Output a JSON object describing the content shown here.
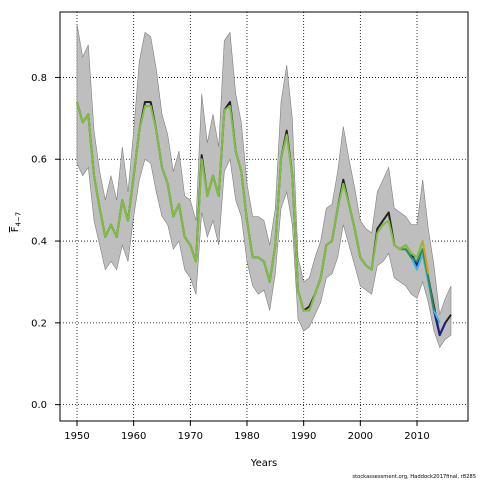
{
  "chart_data": {
    "type": "line",
    "xlabel": "Years",
    "ylabel": "F",
    "ylabel_sub": "4−7",
    "footnote": "stockassessment.org, Haddock2017final, r8285",
    "xlim": [
      1947,
      2019
    ],
    "ylim": [
      -0.04,
      0.96
    ],
    "xticks": [
      1950,
      1960,
      1970,
      1980,
      1990,
      2000,
      2010
    ],
    "yticks": [
      0.0,
      0.2,
      0.4,
      0.6,
      0.8
    ],
    "grid": true,
    "grid_style": "dotted",
    "colors": {
      "band": "#bebebe",
      "band_edge": "#7f7f7f",
      "base": "#222222",
      "retro1": "#1b1f8a",
      "retro2": "#3cb4e6",
      "retro3": "#2e8b57",
      "retro4": "#d4a017",
      "retro5": "#7fbf3f"
    },
    "confidence_band": {
      "years": [
        1950,
        1951,
        1952,
        1953,
        1954,
        1955,
        1956,
        1957,
        1958,
        1959,
        1960,
        1961,
        1962,
        1963,
        1964,
        1965,
        1966,
        1967,
        1968,
        1969,
        1970,
        1971,
        1972,
        1973,
        1974,
        1975,
        1976,
        1977,
        1978,
        1979,
        1980,
        1981,
        1982,
        1983,
        1984,
        1985,
        1986,
        1987,
        1988,
        1989,
        1990,
        1991,
        1992,
        1993,
        1994,
        1995,
        1996,
        1997,
        1998,
        1999,
        2000,
        2001,
        2002,
        2003,
        2004,
        2005,
        2006,
        2007,
        2008,
        2009,
        2010,
        2011,
        2012,
        2013,
        2014,
        2015,
        2016
      ],
      "lower": [
        0.59,
        0.56,
        0.58,
        0.45,
        0.39,
        0.33,
        0.35,
        0.33,
        0.39,
        0.35,
        0.46,
        0.55,
        0.6,
        0.59,
        0.52,
        0.46,
        0.44,
        0.38,
        0.4,
        0.33,
        0.31,
        0.27,
        0.47,
        0.41,
        0.45,
        0.39,
        0.57,
        0.6,
        0.5,
        0.46,
        0.35,
        0.29,
        0.27,
        0.28,
        0.23,
        0.32,
        0.48,
        0.52,
        0.44,
        0.21,
        0.18,
        0.19,
        0.22,
        0.25,
        0.31,
        0.32,
        0.36,
        0.44,
        0.39,
        0.34,
        0.29,
        0.28,
        0.27,
        0.34,
        0.35,
        0.37,
        0.31,
        0.3,
        0.29,
        0.27,
        0.26,
        0.3,
        0.25,
        0.18,
        0.14,
        0.16,
        0.17
      ],
      "upper": [
        0.93,
        0.85,
        0.88,
        0.67,
        0.57,
        0.5,
        0.56,
        0.5,
        0.63,
        0.52,
        0.67,
        0.84,
        0.91,
        0.9,
        0.82,
        0.71,
        0.66,
        0.57,
        0.62,
        0.51,
        0.5,
        0.45,
        0.76,
        0.64,
        0.71,
        0.63,
        0.89,
        0.91,
        0.76,
        0.69,
        0.54,
        0.46,
        0.46,
        0.45,
        0.39,
        0.48,
        0.74,
        0.83,
        0.7,
        0.36,
        0.3,
        0.31,
        0.36,
        0.4,
        0.48,
        0.49,
        0.57,
        0.68,
        0.6,
        0.53,
        0.45,
        0.43,
        0.42,
        0.52,
        0.55,
        0.58,
        0.48,
        0.47,
        0.46,
        0.44,
        0.44,
        0.55,
        0.43,
        0.34,
        0.22,
        0.26,
        0.29
      ]
    },
    "series": [
      {
        "role": "base",
        "x": [
          1950,
          1951,
          1952,
          1953,
          1954,
          1955,
          1956,
          1957,
          1958,
          1959,
          1960,
          1961,
          1962,
          1963,
          1964,
          1965,
          1966,
          1967,
          1968,
          1969,
          1970,
          1971,
          1972,
          1973,
          1974,
          1975,
          1976,
          1977,
          1978,
          1979,
          1980,
          1981,
          1982,
          1983,
          1984,
          1985,
          1986,
          1987,
          1988,
          1989,
          1990,
          1991,
          1992,
          1993,
          1994,
          1995,
          1996,
          1997,
          1998,
          1999,
          2000,
          2001,
          2002,
          2003,
          2004,
          2005,
          2006,
          2007,
          2008,
          2009,
          2010,
          2011,
          2012,
          2013,
          2014,
          2015,
          2016
        ],
        "y": [
          0.74,
          0.69,
          0.71,
          0.56,
          0.48,
          0.41,
          0.44,
          0.41,
          0.5,
          0.45,
          0.56,
          0.67,
          0.74,
          0.74,
          0.67,
          0.58,
          0.54,
          0.46,
          0.49,
          0.41,
          0.39,
          0.35,
          0.61,
          0.51,
          0.56,
          0.51,
          0.72,
          0.74,
          0.62,
          0.57,
          0.45,
          0.36,
          0.36,
          0.35,
          0.3,
          0.39,
          0.6,
          0.67,
          0.56,
          0.28,
          0.23,
          0.24,
          0.27,
          0.31,
          0.39,
          0.4,
          0.48,
          0.55,
          0.49,
          0.43,
          0.36,
          0.34,
          0.33,
          0.43,
          0.45,
          0.47,
          0.39,
          0.38,
          0.39,
          0.37,
          0.34,
          0.37,
          0.31,
          0.24,
          0.17,
          0.2,
          0.22
        ]
      },
      {
        "role": "retro1",
        "x": [
          2009,
          2010,
          2011,
          2012,
          2013,
          2014,
          2015
        ],
        "y": [
          0.37,
          0.34,
          0.37,
          0.31,
          0.23,
          0.17,
          0.2
        ]
      },
      {
        "role": "retro2",
        "x": [
          2008,
          2009,
          2010,
          2011,
          2012,
          2013,
          2014
        ],
        "y": [
          0.38,
          0.36,
          0.33,
          0.37,
          0.3,
          0.23,
          0.2
        ]
      },
      {
        "role": "retro3",
        "x": [
          2007,
          2008,
          2009,
          2010,
          2011,
          2012,
          2013
        ],
        "y": [
          0.38,
          0.38,
          0.36,
          0.35,
          0.38,
          0.31,
          0.23
        ]
      },
      {
        "role": "retro4",
        "x": [
          2006,
          2007,
          2008,
          2009,
          2010,
          2011,
          2012
        ],
        "y": [
          0.39,
          0.38,
          0.39,
          0.37,
          0.36,
          0.4,
          0.32
        ]
      },
      {
        "role": "retro5",
        "x": [
          1950,
          1951,
          1952,
          1953,
          1954,
          1955,
          1956,
          1957,
          1958,
          1959,
          1960,
          1961,
          1962,
          1963,
          1964,
          1965,
          1966,
          1967,
          1968,
          1969,
          1970,
          1971,
          1972,
          1973,
          1974,
          1975,
          1976,
          1977,
          1978,
          1979,
          1980,
          1981,
          1982,
          1983,
          1984,
          1985,
          1986,
          1987,
          1988,
          1989,
          1990,
          1991,
          1992,
          1993,
          1994,
          1995,
          1996,
          1997,
          1998,
          1999,
          2000,
          2001,
          2002,
          2003,
          2004,
          2005,
          2006,
          2007,
          2008,
          2009,
          2010,
          2011
        ],
        "y": [
          0.74,
          0.69,
          0.71,
          0.56,
          0.48,
          0.41,
          0.44,
          0.41,
          0.5,
          0.45,
          0.56,
          0.67,
          0.73,
          0.73,
          0.67,
          0.58,
          0.54,
          0.46,
          0.49,
          0.41,
          0.39,
          0.35,
          0.6,
          0.51,
          0.56,
          0.51,
          0.72,
          0.73,
          0.62,
          0.57,
          0.45,
          0.36,
          0.36,
          0.35,
          0.3,
          0.39,
          0.6,
          0.66,
          0.56,
          0.28,
          0.23,
          0.23,
          0.27,
          0.31,
          0.39,
          0.4,
          0.48,
          0.54,
          0.49,
          0.43,
          0.36,
          0.34,
          0.33,
          0.42,
          0.44,
          0.45,
          0.39,
          0.38,
          0.39,
          0.37,
          0.36,
          0.4
        ]
      }
    ]
  }
}
